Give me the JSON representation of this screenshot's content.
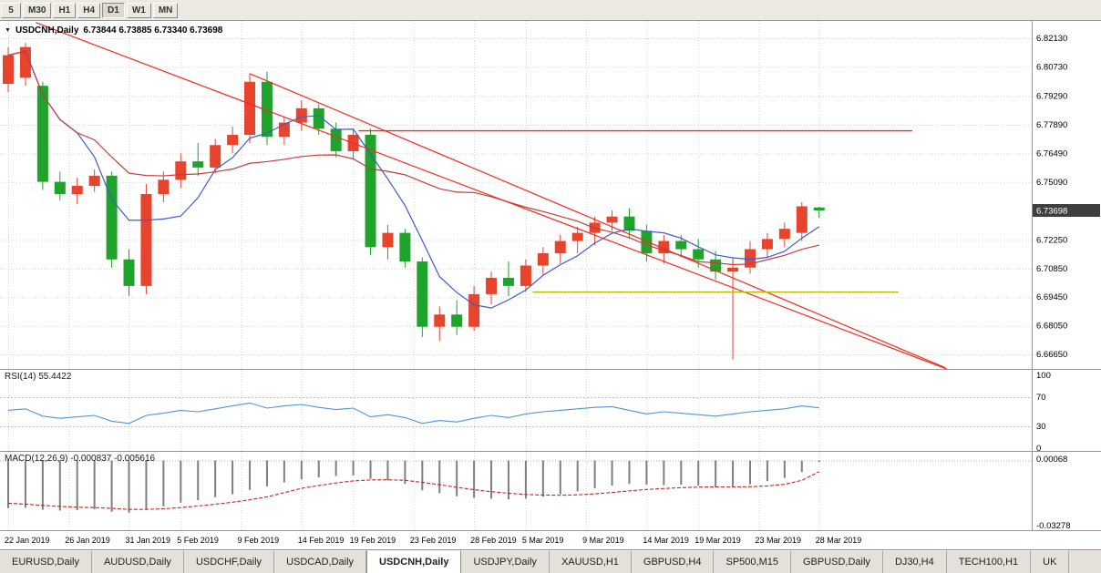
{
  "toolbar": {
    "timeframes": [
      {
        "label": "5",
        "active": false
      },
      {
        "label": "M30",
        "active": false
      },
      {
        "label": "H1",
        "active": false
      },
      {
        "label": "H4",
        "active": false
      },
      {
        "label": "D1",
        "active": true
      },
      {
        "label": "W1",
        "active": false
      },
      {
        "label": "MN",
        "active": false
      }
    ]
  },
  "chart": {
    "title_symbol": "USDCNH,Daily",
    "title_ohlc": "6.73844 6.73885 6.73340 6.73698",
    "current_price": "6.73698"
  },
  "rsi_panel": {
    "label": "RSI(14) 55.4422"
  },
  "macd_panel": {
    "label": "MACD(12,26,9) -0.000837 -0.005616"
  },
  "tabs": [
    {
      "label": "EURUSD,Daily",
      "active": false
    },
    {
      "label": "AUDUSD,Daily",
      "active": false
    },
    {
      "label": "USDCHF,Daily",
      "active": false
    },
    {
      "label": "USDCAD,Daily",
      "active": false
    },
    {
      "label": "USDCNH,Daily",
      "active": true
    },
    {
      "label": "USDJPY,Daily",
      "active": false
    },
    {
      "label": "XAUUSD,H1",
      "active": false
    },
    {
      "label": "GBPUSD,H4",
      "active": false
    },
    {
      "label": "SP500,M15",
      "active": false
    },
    {
      "label": "GBPUSD,Daily",
      "active": false
    },
    {
      "label": "DJ30,H4",
      "active": false
    },
    {
      "label": "TECH100,H1",
      "active": false
    },
    {
      "label": "UK",
      "active": false
    }
  ],
  "colors": {
    "up": "#e8432d",
    "down": "#1fa32b",
    "ma_fast": "#3b5bcd",
    "ma_slow": "#c43c3c",
    "trendline": "#f42a1d",
    "support": "#b9bd00",
    "rsi_line": "#4f94d4",
    "rsi_level": "#c0c0c0",
    "macd_hist": "#7f7f7f",
    "macd_signal": "#cf1f1f",
    "grid": "#d6d6d6",
    "separator": "#979797",
    "badge_bg": "#3f3f3f",
    "badge_text": "#ffffff",
    "axis_text": "#000000"
  },
  "chart_data": [
    {
      "type": "candlestick",
      "symbol": "USDCNH",
      "timeframe": "Daily",
      "ohlc_current": {
        "open": 6.73844,
        "high": 6.73885,
        "low": 6.7334,
        "close": 6.73698
      },
      "price_ticks": [
        6.8213,
        6.8073,
        6.7929,
        6.7789,
        6.7649,
        6.7509,
        6.7225,
        6.7085,
        6.6945,
        6.6805,
        6.6665
      ],
      "price_tick_labels": [
        "6.82130",
        "6.80730",
        "6.79290",
        "6.77890",
        "6.76490",
        "6.75090",
        "6.72250",
        "6.70850",
        "6.69450",
        "6.68050",
        "6.66650"
      ],
      "dates": [
        "2019-01-22",
        "2019-01-23",
        "2019-01-24",
        "2019-01-25",
        "2019-01-28",
        "2019-01-29",
        "2019-01-30",
        "2019-01-31",
        "2019-02-01",
        "2019-02-04",
        "2019-02-05",
        "2019-02-06",
        "2019-02-07",
        "2019-02-08",
        "2019-02-11",
        "2019-02-12",
        "2019-02-13",
        "2019-02-14",
        "2019-02-15",
        "2019-02-18",
        "2019-02-19",
        "2019-02-20",
        "2019-02-21",
        "2019-02-22",
        "2019-02-25",
        "2019-02-26",
        "2019-02-27",
        "2019-02-28",
        "2019-03-01",
        "2019-03-04",
        "2019-03-05",
        "2019-03-06",
        "2019-03-07",
        "2019-03-08",
        "2019-03-11",
        "2019-03-12",
        "2019-03-13",
        "2019-03-14",
        "2019-03-15",
        "2019-03-18",
        "2019-03-19",
        "2019-03-20",
        "2019-03-21",
        "2019-03-22",
        "2019-03-25",
        "2019-03-26",
        "2019-03-27",
        "2019-03-28"
      ],
      "ohlc": [
        [
          6.799,
          6.817,
          6.795,
          6.813
        ],
        [
          6.802,
          6.819,
          6.798,
          6.817
        ],
        [
          6.798,
          6.8,
          6.747,
          6.751
        ],
        [
          6.751,
          6.756,
          6.742,
          6.745
        ],
        [
          6.745,
          6.753,
          6.74,
          6.749
        ],
        [
          6.749,
          6.757,
          6.746,
          6.754
        ],
        [
          6.754,
          6.756,
          6.709,
          6.713
        ],
        [
          6.713,
          6.718,
          6.695,
          6.7
        ],
        [
          6.7,
          6.75,
          6.696,
          6.745
        ],
        [
          6.745,
          6.756,
          6.741,
          6.752
        ],
        [
          6.752,
          6.765,
          6.748,
          6.761
        ],
        [
          6.761,
          6.77,
          6.754,
          6.758
        ],
        [
          6.758,
          6.772,
          6.755,
          6.769
        ],
        [
          6.769,
          6.778,
          6.765,
          6.774
        ],
        [
          6.774,
          6.804,
          6.77,
          6.8
        ],
        [
          6.8,
          6.805,
          6.769,
          6.773
        ],
        [
          6.773,
          6.783,
          6.769,
          6.78
        ],
        [
          6.78,
          6.791,
          6.776,
          6.787
        ],
        [
          6.787,
          6.789,
          6.774,
          6.777
        ],
        [
          6.777,
          6.78,
          6.763,
          6.766
        ],
        [
          6.766,
          6.777,
          6.762,
          6.774
        ],
        [
          6.774,
          6.777,
          6.715,
          6.719
        ],
        [
          6.719,
          6.73,
          6.713,
          6.726
        ],
        [
          6.726,
          6.728,
          6.709,
          6.712
        ],
        [
          6.712,
          6.714,
          6.675,
          6.68
        ],
        [
          6.68,
          6.69,
          6.673,
          6.686
        ],
        [
          6.686,
          6.693,
          6.676,
          6.68
        ],
        [
          6.68,
          6.7,
          6.678,
          6.696
        ],
        [
          6.696,
          6.707,
          6.691,
          6.704
        ],
        [
          6.704,
          6.712,
          6.695,
          6.7
        ],
        [
          6.7,
          6.713,
          6.697,
          6.71
        ],
        [
          6.71,
          6.719,
          6.705,
          6.716
        ],
        [
          6.716,
          6.725,
          6.711,
          6.722
        ],
        [
          6.722,
          6.729,
          6.716,
          6.726
        ],
        [
          6.726,
          6.734,
          6.72,
          6.731
        ],
        [
          6.731,
          6.737,
          6.727,
          6.734
        ],
        [
          6.734,
          6.738,
          6.723,
          6.727
        ],
        [
          6.727,
          6.73,
          6.712,
          6.716
        ],
        [
          6.716,
          6.725,
          6.711,
          6.722
        ],
        [
          6.722,
          6.725,
          6.714,
          6.718
        ],
        [
          6.718,
          6.723,
          6.709,
          6.713
        ],
        [
          6.713,
          6.717,
          6.703,
          6.707
        ],
        [
          6.707,
          6.714,
          6.664,
          6.709
        ],
        [
          6.709,
          6.722,
          6.706,
          6.718
        ],
        [
          6.718,
          6.726,
          6.714,
          6.723
        ],
        [
          6.723,
          6.731,
          6.719,
          6.728
        ],
        [
          6.726,
          6.741,
          6.722,
          6.739
        ],
        [
          6.73844,
          6.73885,
          6.7334,
          6.73698
        ]
      ],
      "overlays": [
        {
          "name": "ma-fast",
          "type": "sma",
          "period": 5,
          "color": "#3b5bcd"
        },
        {
          "name": "ma-slow",
          "type": "sma",
          "period": 20,
          "color": "#c43c3c"
        }
      ],
      "trendlines": [
        {
          "x1": 1.6,
          "p1": 6.829,
          "x2": 54.5,
          "p2": 6.659,
          "color": "#f42a1d",
          "width": 1.2
        },
        {
          "x1": 14.0,
          "p1": 6.804,
          "x2": 54.3,
          "p2": 6.66,
          "color": "#f42a1d",
          "width": 1.2
        }
      ],
      "hlines": [
        {
          "price": 6.776,
          "x1": 20.3,
          "x2": 52.4,
          "color": "#f42a1d",
          "width": 1.4
        },
        {
          "price": 6.697,
          "x1": 30.4,
          "x2": 51.6,
          "color": "#b9bd00",
          "width": 1.6
        }
      ],
      "date_ticks": [
        {
          "label": "22 Jan 2019",
          "bar": 0
        },
        {
          "label": "26 Jan 2019",
          "bar": 3.5
        },
        {
          "label": "31 Jan 2019",
          "bar": 7
        },
        {
          "label": "5 Feb 2019",
          "bar": 10
        },
        {
          "label": "9 Feb 2019",
          "bar": 13.5
        },
        {
          "label": "14 Feb 2019",
          "bar": 17
        },
        {
          "label": "19 Feb 2019",
          "bar": 20
        },
        {
          "label": "23 Feb 2019",
          "bar": 23.5
        },
        {
          "label": "28 Feb 2019",
          "bar": 27
        },
        {
          "label": "5 Mar 2019",
          "bar": 30
        },
        {
          "label": "9 Mar 2019",
          "bar": 33.5
        },
        {
          "label": "14 Mar 2019",
          "bar": 37
        },
        {
          "label": "19 Mar 2019",
          "bar": 40
        },
        {
          "label": "23 Mar 2019",
          "bar": 43.5
        },
        {
          "label": "28 Mar 2019",
          "bar": 47
        }
      ]
    },
    {
      "type": "line",
      "name": "RSI(14)",
      "current": 55.4422,
      "range": [
        0,
        100
      ],
      "ticks": [
        {
          "label": "100",
          "value": 100
        },
        {
          "label": "70",
          "value": 70
        },
        {
          "label": "30",
          "value": 30
        },
        {
          "label": "0",
          "value": 0
        }
      ],
      "levels": [
        70,
        30
      ],
      "values": [
        52,
        54,
        44,
        41,
        43,
        45,
        37,
        34,
        45,
        48,
        52,
        50,
        54,
        58,
        62,
        55,
        58,
        60,
        56,
        53,
        55,
        43,
        46,
        42,
        34,
        38,
        36,
        41,
        45,
        42,
        47,
        50,
        52,
        54,
        56,
        57,
        52,
        47,
        50,
        48,
        46,
        44,
        47,
        50,
        52,
        54,
        58,
        55.44
      ],
      "color": "#4f94d4"
    },
    {
      "type": "macd",
      "name": "MACD(12,26,9)",
      "current_macd": -0.000837,
      "current_signal": -0.005616,
      "ticks": [
        {
          "label": "0.00068",
          "value": 0.00068
        },
        {
          "label": "-0.03278",
          "value": -0.03278
        }
      ],
      "histogram": [
        -0.024,
        -0.0238,
        -0.0248,
        -0.0252,
        -0.025,
        -0.0246,
        -0.0258,
        -0.0263,
        -0.0245,
        -0.023,
        -0.0212,
        -0.02,
        -0.0185,
        -0.017,
        -0.0148,
        -0.013,
        -0.011,
        -0.0095,
        -0.0085,
        -0.0078,
        -0.0075,
        -0.0092,
        -0.01,
        -0.0118,
        -0.015,
        -0.0165,
        -0.018,
        -0.0188,
        -0.0192,
        -0.0196,
        -0.0192,
        -0.0183,
        -0.017,
        -0.0155,
        -0.014,
        -0.0126,
        -0.0118,
        -0.0122,
        -0.0124,
        -0.0122,
        -0.0126,
        -0.0135,
        -0.013,
        -0.012,
        -0.0104,
        -0.0088,
        -0.0058,
        -0.000837
      ],
      "signal": [
        -0.0215,
        -0.022,
        -0.0226,
        -0.0231,
        -0.0235,
        -0.0237,
        -0.0241,
        -0.0246,
        -0.0246,
        -0.0243,
        -0.0237,
        -0.0229,
        -0.022,
        -0.021,
        -0.0198,
        -0.0183,
        -0.0162,
        -0.014,
        -0.0126,
        -0.0113,
        -0.0103,
        -0.0098,
        -0.0097,
        -0.01,
        -0.011,
        -0.0122,
        -0.0135,
        -0.0147,
        -0.0157,
        -0.0165,
        -0.0171,
        -0.0174,
        -0.0175,
        -0.0173,
        -0.0168,
        -0.0161,
        -0.0153,
        -0.0146,
        -0.0141,
        -0.0137,
        -0.0134,
        -0.0133,
        -0.0133,
        -0.0132,
        -0.0128,
        -0.012,
        -0.01,
        -0.005616
      ],
      "hist_color": "#7f7f7f",
      "signal_color": "#cf1f1f"
    }
  ]
}
